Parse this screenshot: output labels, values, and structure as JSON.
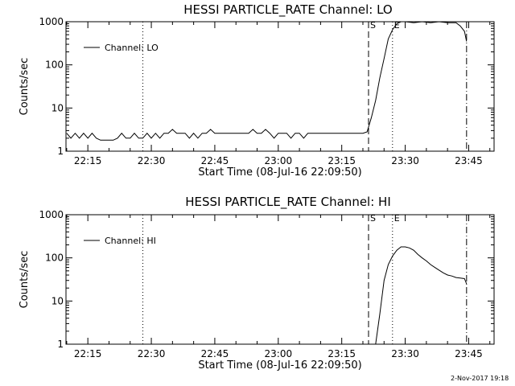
{
  "chart_data": [
    {
      "type": "line",
      "title": "HESSI PARTICLE_RATE Channel: LO",
      "xlabel": "Start Time (08-Jul-16 22:09:50)",
      "ylabel": "Counts/sec",
      "yscale": "log",
      "ylim": [
        1,
        1000
      ],
      "xlim": [
        "22:09:50",
        "23:51:00"
      ],
      "xticks": [
        "22:15",
        "22:30",
        "22:45",
        "23:00",
        "23:15",
        "23:30",
        "23:45"
      ],
      "yticks": [
        "1",
        "10",
        "100",
        "1000"
      ],
      "legend": {
        "label": "Channel: LO",
        "placement": "top-left"
      },
      "grid": false,
      "vlines": [
        {
          "x": "22:28:00",
          "style": "dotted",
          "label": ""
        },
        {
          "x": "23:21:20",
          "style": "dashed",
          "label": "S"
        },
        {
          "x": "23:27:00",
          "style": "dotted",
          "label": "E"
        },
        {
          "x": "23:44:30",
          "style": "dashdot",
          "label": ""
        }
      ],
      "series": [
        {
          "name": "Channel: LO",
          "x": [
            "22:10:00",
            "22:11:00",
            "22:12:00",
            "22:13:00",
            "22:14:00",
            "22:15:00",
            "22:16:00",
            "22:17:00",
            "22:18:00",
            "22:19:00",
            "22:20:00",
            "22:21:00",
            "22:22:00",
            "22:23:00",
            "22:24:00",
            "22:25:00",
            "22:26:00",
            "22:27:00",
            "22:28:00",
            "22:29:00",
            "22:30:00",
            "22:31:00",
            "22:32:00",
            "22:33:00",
            "22:34:00",
            "22:35:00",
            "22:36:00",
            "22:37:00",
            "22:38:00",
            "22:39:00",
            "22:40:00",
            "22:41:00",
            "22:42:00",
            "22:43:00",
            "22:44:00",
            "22:45:00",
            "22:46:00",
            "22:47:00",
            "22:48:00",
            "22:49:00",
            "22:50:00",
            "22:51:00",
            "22:52:00",
            "22:53:00",
            "22:54:00",
            "22:55:00",
            "22:56:00",
            "22:57:00",
            "22:58:00",
            "22:59:00",
            "23:00:00",
            "23:01:00",
            "23:02:00",
            "23:03:00",
            "23:04:00",
            "23:05:00",
            "23:06:00",
            "23:07:00",
            "23:08:00",
            "23:09:00",
            "23:10:00",
            "23:11:00",
            "23:12:00",
            "23:13:00",
            "23:14:00",
            "23:15:00",
            "23:16:00",
            "23:17:00",
            "23:18:00",
            "23:19:00",
            "23:20:00",
            "23:21:00",
            "23:22:00",
            "23:23:00",
            "23:24:00",
            "23:25:00",
            "23:26:00",
            "23:27:00",
            "23:28:00",
            "23:29:00",
            "23:30:00",
            "23:32:00",
            "23:34:00",
            "23:36:00",
            "23:38:00",
            "23:40:00",
            "23:42:00",
            "23:43:00",
            "23:44:00",
            "23:44:30"
          ],
          "y": [
            2.6,
            2,
            2.6,
            2,
            2.6,
            2,
            2.6,
            2,
            1.8,
            1.8,
            1.8,
            1.8,
            2,
            2.6,
            2,
            2,
            2.6,
            2,
            2,
            2.6,
            2,
            2.6,
            2,
            2.6,
            2.6,
            3.2,
            2.6,
            2.6,
            2.6,
            2,
            2.6,
            2,
            2.6,
            2.6,
            3.2,
            2.6,
            2.6,
            2.6,
            2.6,
            2.6,
            2.6,
            2.6,
            2.6,
            2.6,
            3.2,
            2.6,
            2.6,
            3.2,
            2.6,
            2,
            2.6,
            2.6,
            2.6,
            2,
            2.6,
            2.6,
            2,
            2.6,
            2.6,
            2.6,
            2.6,
            2.6,
            2.6,
            2.6,
            2.6,
            2.6,
            2.6,
            2.6,
            2.6,
            2.6,
            2.6,
            2.8,
            6,
            15,
            50,
            140,
            400,
            650,
            900,
            1000,
            1000,
            950,
            1000,
            950,
            1000,
            950,
            950,
            800,
            600,
            350
          ]
        }
      ]
    },
    {
      "type": "line",
      "title": "HESSI PARTICLE_RATE Channel: HI",
      "xlabel": "Start Time (08-Jul-16 22:09:50)",
      "ylabel": "Counts/sec",
      "yscale": "log",
      "ylim": [
        1,
        1000
      ],
      "xlim": [
        "22:09:50",
        "23:51:00"
      ],
      "xticks": [
        "22:15",
        "22:30",
        "22:45",
        "23:00",
        "23:15",
        "23:30",
        "23:45"
      ],
      "yticks": [
        "1",
        "10",
        "100",
        "1000"
      ],
      "legend": {
        "label": "Channel: HI",
        "placement": "top-left"
      },
      "grid": false,
      "vlines": [
        {
          "x": "22:28:00",
          "style": "dotted",
          "label": ""
        },
        {
          "x": "23:21:20",
          "style": "dashed",
          "label": "S"
        },
        {
          "x": "23:27:00",
          "style": "dotted",
          "label": "E"
        },
        {
          "x": "23:44:30",
          "style": "dashdot",
          "label": ""
        }
      ],
      "series": [
        {
          "name": "Channel: HI",
          "x": [
            "23:23:00",
            "23:24:00",
            "23:25:00",
            "23:26:00",
            "23:27:00",
            "23:28:00",
            "23:29:00",
            "23:30:00",
            "23:31:00",
            "23:32:00",
            "23:33:00",
            "23:34:00",
            "23:35:00",
            "23:36:00",
            "23:37:00",
            "23:38:00",
            "23:39:00",
            "23:40:00",
            "23:41:00",
            "23:42:00",
            "23:43:00",
            "23:44:00",
            "23:44:30"
          ],
          "y": [
            1,
            5,
            30,
            70,
            110,
            150,
            180,
            180,
            170,
            150,
            120,
            100,
            85,
            70,
            60,
            52,
            45,
            40,
            38,
            35,
            34,
            33,
            25
          ]
        }
      ]
    }
  ],
  "footer": {
    "timestamp": "2-Nov-2017 19:18"
  }
}
